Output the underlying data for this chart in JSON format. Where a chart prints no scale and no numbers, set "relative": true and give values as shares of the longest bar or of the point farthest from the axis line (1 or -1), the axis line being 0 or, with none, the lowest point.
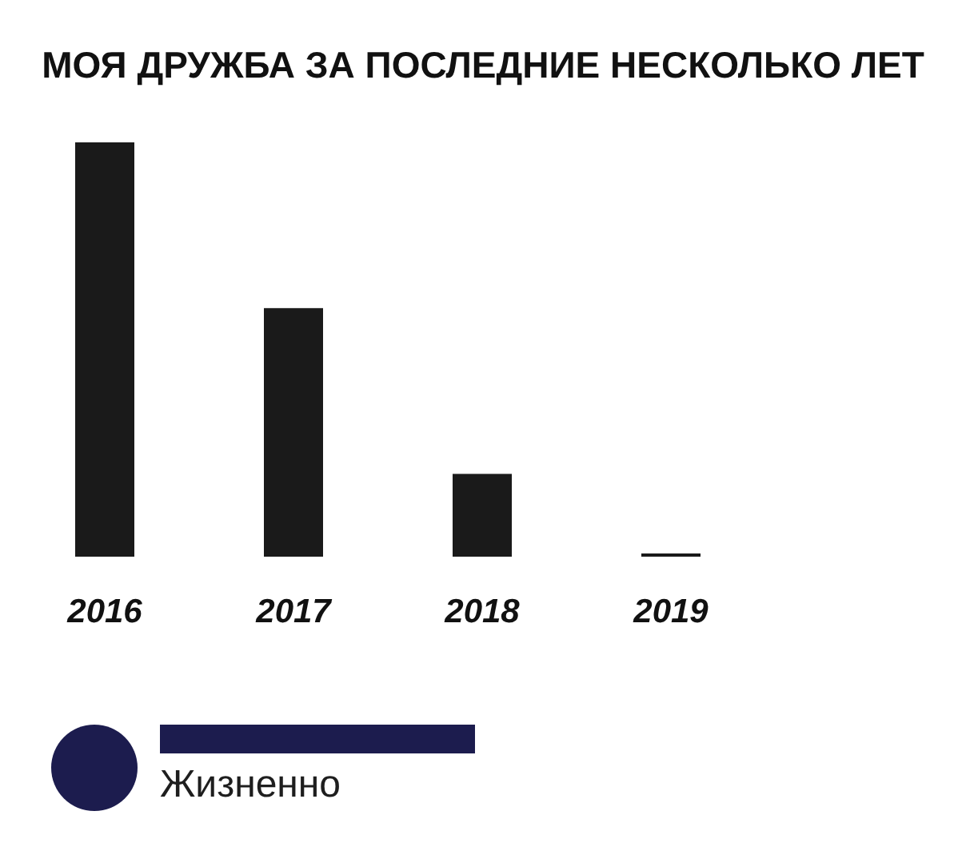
{
  "chart_data": {
    "type": "bar",
    "title": "МОЯ ДРУЖБА ЗА ПОСЛЕДНИЕ НЕСКОЛЬКО ЛЕТ",
    "categories": [
      "2016",
      "2017",
      "2018",
      "2019"
    ],
    "values": [
      1,
      0.6,
      0.2,
      0
    ],
    "color": "#1a1a1a",
    "relative": true,
    "annotations": [
      "Жизненно"
    ]
  }
}
